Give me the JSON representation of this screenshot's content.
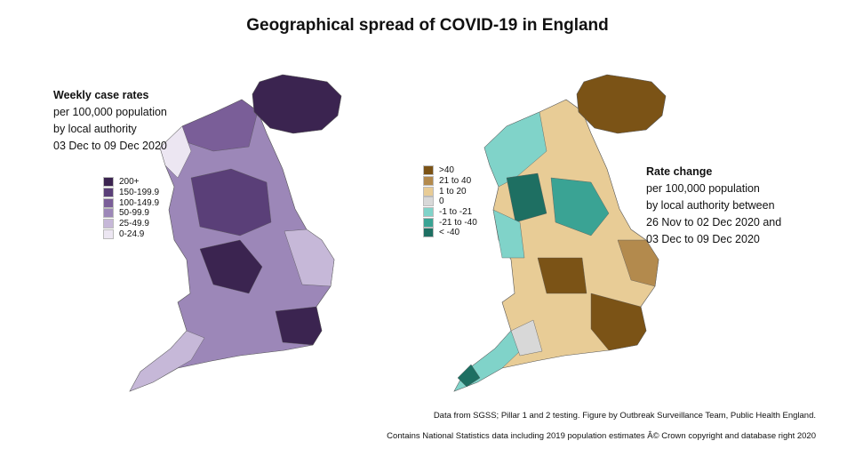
{
  "title": "Geographical spread of COVID-19 in England",
  "left_map": {
    "heading": "Weekly case rates",
    "lines": [
      "per 100,000 population",
      "by local authority",
      "03 Dec to 09 Dec 2020"
    ],
    "legend": [
      {
        "label": "200+",
        "color": "#3b2450"
      },
      {
        "label": "150-199.9",
        "color": "#5a3f78"
      },
      {
        "label": "100-149.9",
        "color": "#7a5e98"
      },
      {
        "label": "50-99.9",
        "color": "#9c87b8"
      },
      {
        "label": "25-49.9",
        "color": "#c6b8d8"
      },
      {
        "label": "0-24.9",
        "color": "#ece6f2"
      }
    ]
  },
  "right_map": {
    "heading": "Rate change",
    "lines": [
      "per 100,000 population",
      "by local authority between",
      "26 Nov to 02 Dec 2020 and",
      "03 Dec to 09 Dec 2020"
    ],
    "legend": [
      {
        "label": ">40",
        "color": "#7b5316"
      },
      {
        "label": "21 to 40",
        "color": "#b38a4d"
      },
      {
        "label": "1 to 20",
        "color": "#e8cc96"
      },
      {
        "label": "0",
        "color": "#d8d8d8"
      },
      {
        "label": "-1 to -21",
        "color": "#80d3c9"
      },
      {
        "label": "-21 to -40",
        "color": "#3aa394"
      },
      {
        "label": "< -40",
        "color": "#1e6f62"
      }
    ]
  },
  "footer": {
    "line1": "Data from SGSS; Pillar 1 and 2 testing. Figure by Outbreak Surveillance Team, Public Health England.",
    "line2": "Contains National Statistics data including 2019 population estimates Â© Crown copyright and database right 2020"
  }
}
